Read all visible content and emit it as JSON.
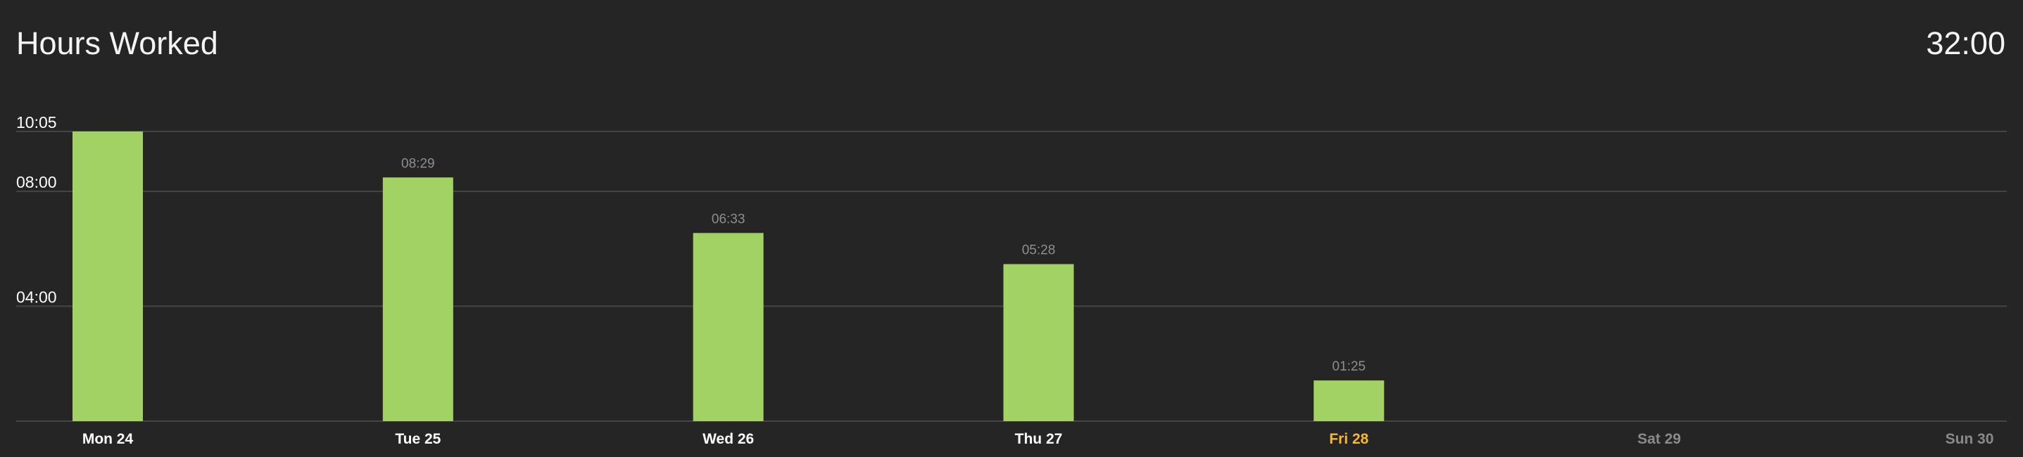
{
  "header": {
    "title": "Hours Worked",
    "total": "32:00"
  },
  "colors": {
    "background": "#252525",
    "bar": "#a1d263",
    "day_label": "#ffffff",
    "today_label": "#f7b731",
    "future_label": "#8a8a8a",
    "data_label": "#8e8e8e",
    "grid": "#454545"
  },
  "chart_data": {
    "type": "bar",
    "title": "Hours Worked",
    "xlabel": "",
    "ylabel": "",
    "ylim": [
      0,
      10.0833
    ],
    "grid": true,
    "y_ticks": [
      {
        "value": 4,
        "label": "04:00"
      },
      {
        "value": 8,
        "label": "08:00"
      },
      {
        "value": 10.0833,
        "label": "10:05"
      }
    ],
    "categories": [
      "Mon 24",
      "Tue 25",
      "Wed 26",
      "Thu 27",
      "Fri 28",
      "Sat 29",
      "Sun 30"
    ],
    "category_state": [
      "past",
      "past",
      "past",
      "past",
      "today",
      "future",
      "future"
    ],
    "values": [
      10.0833,
      8.4833,
      6.55,
      5.4667,
      1.4167,
      null,
      null
    ],
    "data_labels": [
      "",
      "08:29",
      "06:33",
      "05:28",
      "01:25",
      "",
      ""
    ]
  }
}
